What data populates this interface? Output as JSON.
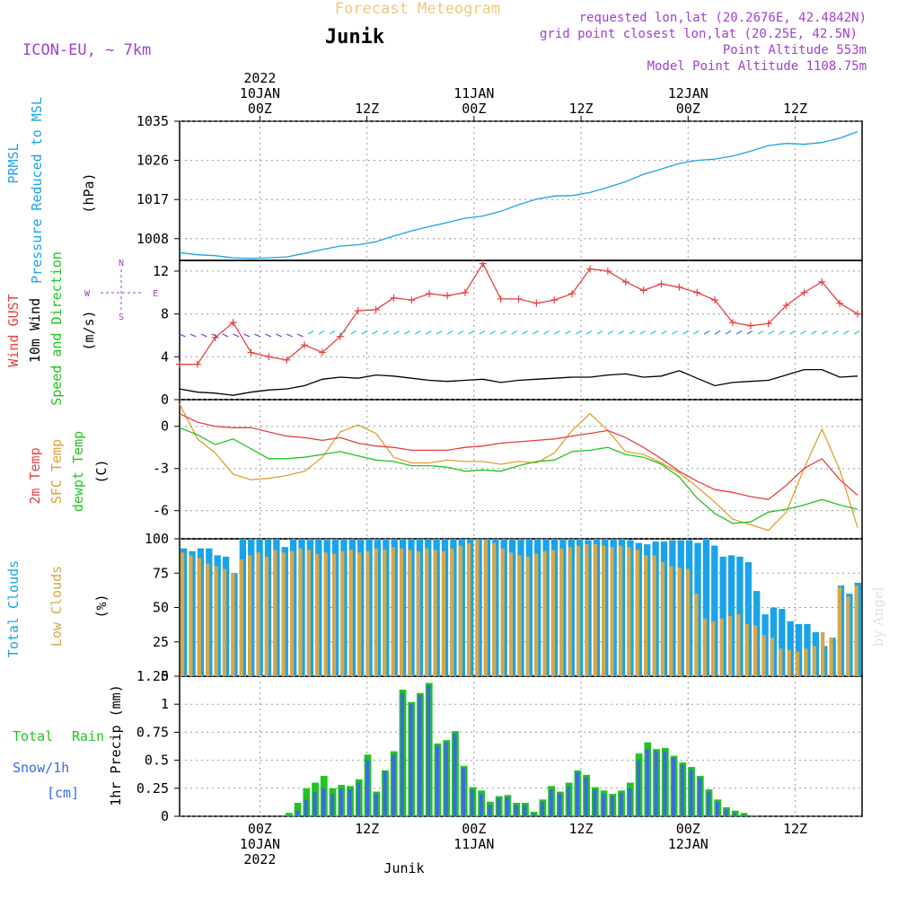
{
  "header": {
    "title": "Forecast Meteogram",
    "location": "Junik",
    "model": "ICON-EU, ~ 7km",
    "requested": "requested lon,lat (20.2676E, 42.4842N)",
    "gridpoint": "grid point closest lon,lat (20.25E, 42.5N)",
    "point_altitude": "Point Altitude 553m",
    "model_altitude": "Model Point Altitude 1108.75m",
    "footer_location": "Junik",
    "watermark": "by Angel"
  },
  "colors": {
    "pressure": "#1aa3e8",
    "gust": "#e84040",
    "wind": "#000000",
    "barb": "#22c7c7",
    "barb_alt": "#6a3de8",
    "temp": "#e84040",
    "sfc": "#e0a030",
    "dewpt": "#22c422",
    "total_cloud": "#1aa3e8",
    "low_cloud": "#d4a84a",
    "rain": "#22c422",
    "snow": "#3a6ae8",
    "meta": "#a040d0",
    "title": "#f0c880"
  },
  "time_axis": {
    "top_labels": [
      {
        "t": 9,
        "l1": "2022",
        "l2": "10JAN",
        "l3": "00Z"
      },
      {
        "t": 21,
        "l1": "",
        "l2": "",
        "l3": "12Z"
      },
      {
        "t": 33,
        "l1": "",
        "l2": "11JAN",
        "l3": "00Z"
      },
      {
        "t": 45,
        "l1": "",
        "l2": "",
        "l3": "12Z"
      },
      {
        "t": 57,
        "l1": "",
        "l2": "12JAN",
        "l3": "00Z"
      },
      {
        "t": 69,
        "l1": "",
        "l2": "",
        "l3": "12Z"
      }
    ],
    "bottom_labels": [
      {
        "t": 9,
        "l1": "00Z",
        "l2": "10JAN",
        "l3": "2022"
      },
      {
        "t": 21,
        "l1": "12Z",
        "l2": "",
        "l3": ""
      },
      {
        "t": 33,
        "l1": "00Z",
        "l2": "11JAN",
        "l3": ""
      },
      {
        "t": 45,
        "l1": "12Z",
        "l2": "",
        "l3": ""
      },
      {
        "t": 57,
        "l1": "00Z",
        "l2": "12JAN",
        "l3": ""
      },
      {
        "t": 69,
        "l1": "12Z",
        "l2": "",
        "l3": ""
      }
    ]
  },
  "panels": {
    "pressure": {
      "label1": "PRMSL",
      "label2": "Pressure Reduced to MSL",
      "unit": "(hPa)",
      "ticks": [
        "1035",
        "1026",
        "1017",
        "1008"
      ]
    },
    "wind": {
      "label1": "Wind GUST",
      "label2": "10m Wind",
      "label3": "Speed and Direction",
      "unit": "(m/s)",
      "ticks": [
        "12",
        "8",
        "4",
        "0"
      ],
      "compass_n": "N",
      "compass_s": "S",
      "compass_w": "W",
      "compass_e": "E"
    },
    "temp": {
      "label1": "2m Temp",
      "label2": "SFC Temp",
      "label3": "dewpt Temp",
      "unit": "(C)",
      "ticks": [
        "0",
        "-3",
        "-6"
      ]
    },
    "clouds": {
      "label1": "Total Clouds",
      "label2": "Low Clouds",
      "unit": "(%)",
      "ticks": [
        "100",
        "75",
        "50",
        "25",
        "0"
      ]
    },
    "precip": {
      "label1": "Total",
      "label1b": "Rain",
      "label2": "Snow/1h",
      "label2b": "[cm]",
      "unit": "1hr Precip (mm)",
      "ticks": [
        "1.25",
        "1",
        "0.75",
        "0.5",
        "0.25",
        "0"
      ]
    }
  },
  "chart_data": [
    {
      "type": "line",
      "name": "PRMSL",
      "x_hours": [
        0,
        2,
        4,
        6,
        8,
        10,
        12,
        14,
        16,
        18,
        20,
        22,
        24,
        26,
        28,
        30,
        32,
        34,
        36,
        38,
        40,
        42,
        44,
        46,
        48,
        50,
        52,
        54,
        56,
        58,
        60,
        62,
        64,
        66,
        68,
        70,
        72,
        74,
        76
      ],
      "values": [
        1004.8,
        1004.3,
        1004.1,
        1003.6,
        1003.5,
        1003.6,
        1003.8,
        1004.6,
        1005.5,
        1006.3,
        1006.6,
        1007.3,
        1008.6,
        1009.8,
        1010.8,
        1011.7,
        1012.7,
        1013.2,
        1014.3,
        1015.8,
        1017.1,
        1017.8,
        1017.9,
        1018.6,
        1019.8,
        1021.1,
        1022.8,
        1024.0,
        1025.3,
        1026.0,
        1026.3,
        1027.0,
        1028.1,
        1029.4,
        1029.9,
        1029.7,
        1030.1,
        1031.1,
        1032.6
      ],
      "ylim": [
        1003,
        1035
      ],
      "ylabel": "(hPa)"
    },
    {
      "type": "line",
      "name": "Wind GUST / 10m Wind",
      "x_hours": [
        0,
        2,
        4,
        6,
        8,
        10,
        12,
        14,
        16,
        18,
        20,
        22,
        24,
        26,
        28,
        30,
        32,
        34,
        36,
        38,
        40,
        42,
        44,
        46,
        48,
        50,
        52,
        54,
        56,
        58,
        60,
        62,
        64,
        66,
        68,
        70,
        72,
        74,
        76
      ],
      "gust": [
        3.3,
        3.3,
        5.8,
        7.2,
        4.4,
        4.0,
        3.7,
        5.1,
        4.4,
        5.9,
        8.3,
        8.4,
        9.5,
        9.3,
        9.9,
        9.7,
        10.0,
        12.7,
        9.4,
        9.4,
        9.0,
        9.3,
        9.9,
        12.2,
        12.0,
        11.0,
        10.2,
        10.8,
        10.5,
        10.0,
        9.3,
        7.2,
        6.9,
        7.1,
        8.8,
        10.0,
        11.0,
        9.0,
        8.0
      ],
      "wind": [
        1.0,
        0.7,
        0.6,
        0.4,
        0.7,
        0.9,
        1.0,
        1.3,
        1.9,
        2.1,
        2.0,
        2.3,
        2.2,
        2.0,
        1.8,
        1.7,
        1.8,
        1.9,
        1.6,
        1.8,
        1.9,
        2.0,
        2.1,
        2.1,
        2.3,
        2.4,
        2.1,
        2.2,
        2.7,
        2.0,
        1.3,
        1.6,
        1.7,
        1.8,
        2.3,
        2.8,
        2.8,
        2.1,
        2.2
      ],
      "ylim": [
        0,
        13
      ],
      "ylabel": "(m/s)"
    },
    {
      "type": "line",
      "name": "Temperature",
      "x_hours": [
        0,
        2,
        4,
        6,
        8,
        10,
        12,
        14,
        16,
        18,
        20,
        22,
        24,
        26,
        28,
        30,
        32,
        34,
        36,
        38,
        40,
        42,
        44,
        46,
        48,
        50,
        52,
        54,
        56,
        58,
        60,
        62,
        64,
        66,
        68,
        70,
        72,
        74,
        76
      ],
      "temp2m": [
        0.9,
        0.3,
        0.0,
        -0.1,
        -0.1,
        -0.4,
        -0.7,
        -0.8,
        -1.0,
        -0.8,
        -1.2,
        -1.4,
        -1.5,
        -1.7,
        -1.7,
        -1.7,
        -1.5,
        -1.4,
        -1.2,
        -1.1,
        -1.0,
        -0.9,
        -0.7,
        -0.5,
        -0.3,
        -0.8,
        -1.5,
        -2.3,
        -3.2,
        -3.9,
        -4.5,
        -4.7,
        -5.0,
        -5.2,
        -4.2,
        -3.0,
        -2.3,
        -3.8,
        -4.9
      ],
      "sfc": [
        1.6,
        -0.9,
        -1.9,
        -3.4,
        -3.8,
        -3.7,
        -3.5,
        -3.2,
        -2.2,
        -0.4,
        0.1,
        -0.5,
        -2.2,
        -2.6,
        -2.6,
        -2.4,
        -2.5,
        -2.5,
        -2.7,
        -2.5,
        -2.6,
        -1.9,
        -0.3,
        0.9,
        -0.3,
        -1.8,
        -2.0,
        -2.6,
        -3.3,
        -4.3,
        -5.4,
        -6.6,
        -7.0,
        -7.4,
        -6.1,
        -3.0,
        -0.2,
        -3.1,
        -7.2
      ],
      "dewpt": [
        -0.1,
        -0.6,
        -1.3,
        -0.9,
        -1.6,
        -2.3,
        -2.3,
        -2.2,
        -2.0,
        -1.8,
        -2.1,
        -2.4,
        -2.5,
        -2.8,
        -2.8,
        -2.9,
        -3.2,
        -3.1,
        -3.2,
        -2.8,
        -2.5,
        -2.4,
        -1.8,
        -1.7,
        -1.5,
        -2.0,
        -2.2,
        -2.7,
        -3.6,
        -5.1,
        -6.2,
        -6.9,
        -6.8,
        -6.1,
        -5.9,
        -5.6,
        -5.2,
        -5.6,
        -5.9
      ],
      "ylim": [
        -8,
        1.9
      ],
      "ylabel": "(C)"
    },
    {
      "type": "bar",
      "name": "Clouds",
      "total": [
        93,
        91,
        93,
        93,
        88,
        87,
        75,
        100,
        100,
        100,
        100,
        100,
        94,
        100,
        100,
        100,
        100,
        100,
        100,
        100,
        100,
        100,
        100,
        100,
        100,
        100,
        100,
        100,
        100,
        100,
        100,
        100,
        100,
        100,
        100,
        100,
        100,
        100,
        100,
        100,
        100,
        100,
        100,
        100,
        100,
        100,
        100,
        100,
        99,
        100,
        100,
        100,
        100,
        99,
        97,
        96,
        98,
        98,
        99,
        99,
        99,
        97,
        100,
        95,
        87,
        88,
        87,
        83,
        62,
        45,
        50,
        49,
        40,
        38,
        38,
        32,
        22,
        28,
        66,
        60,
        68
      ],
      "low": [
        90,
        88,
        86,
        82,
        80,
        78,
        75,
        85,
        88,
        90,
        87,
        92,
        90,
        91,
        93,
        92,
        89,
        90,
        89,
        91,
        92,
        90,
        91,
        93,
        92,
        94,
        93,
        92,
        91,
        93,
        92,
        91,
        93,
        95,
        97,
        99,
        99,
        97,
        93,
        90,
        88,
        87,
        89,
        91,
        92,
        93,
        94,
        95,
        96,
        96,
        95,
        94,
        95,
        94,
        92,
        88,
        88,
        83,
        80,
        79,
        78,
        60,
        42,
        40,
        42,
        44,
        45,
        38,
        37,
        30,
        28,
        20,
        19,
        18,
        20,
        22,
        32,
        28,
        65,
        58,
        66
      ],
      "ylim": [
        0,
        100
      ],
      "ylabel": "(%)"
    },
    {
      "type": "bar",
      "name": "1hr Precip",
      "rain": [
        0,
        0,
        0,
        0,
        0,
        0,
        0,
        0,
        0,
        0,
        0,
        0,
        0.03,
        0.12,
        0.25,
        0.3,
        0.36,
        0.25,
        0.28,
        0.27,
        0.33,
        0.55,
        0.22,
        0.41,
        0.58,
        1.13,
        1.02,
        1.1,
        1.19,
        0.65,
        0.68,
        0.76,
        0.45,
        0.26,
        0.23,
        0.13,
        0.18,
        0.19,
        0.12,
        0.12,
        0.04,
        0.15,
        0.27,
        0.22,
        0.3,
        0.41,
        0.37,
        0.26,
        0.23,
        0.2,
        0.23,
        0.3,
        0.56,
        0.66,
        0.6,
        0.61,
        0.54,
        0.48,
        0.44,
        0.36,
        0.24,
        0.15,
        0.08,
        0.05,
        0.03,
        0.01,
        0,
        0,
        0,
        0,
        0,
        0,
        0,
        0,
        0,
        0,
        0,
        0
      ],
      "snow": [
        0,
        0,
        0,
        0,
        0,
        0,
        0,
        0,
        0,
        0,
        0,
        0,
        0,
        0.05,
        0.15,
        0.22,
        0.25,
        0.2,
        0.25,
        0.24,
        0.3,
        0.5,
        0.2,
        0.4,
        0.55,
        1.1,
        1.0,
        1.08,
        1.17,
        0.63,
        0.66,
        0.74,
        0.43,
        0.24,
        0.2,
        0.1,
        0.16,
        0.17,
        0.1,
        0.1,
        0.02,
        0.13,
        0.24,
        0.2,
        0.27,
        0.39,
        0.35,
        0.24,
        0.2,
        0.18,
        0.21,
        0.25,
        0.5,
        0.6,
        0.58,
        0.58,
        0.52,
        0.46,
        0.42,
        0.34,
        0.22,
        0.13,
        0.06,
        0.03,
        0.01,
        0,
        0,
        0,
        0,
        0,
        0,
        0,
        0,
        0,
        0,
        0,
        0
      ],
      "ylim": [
        0,
        1.25
      ],
      "ylabel": "1hr Precip (mm)"
    }
  ]
}
